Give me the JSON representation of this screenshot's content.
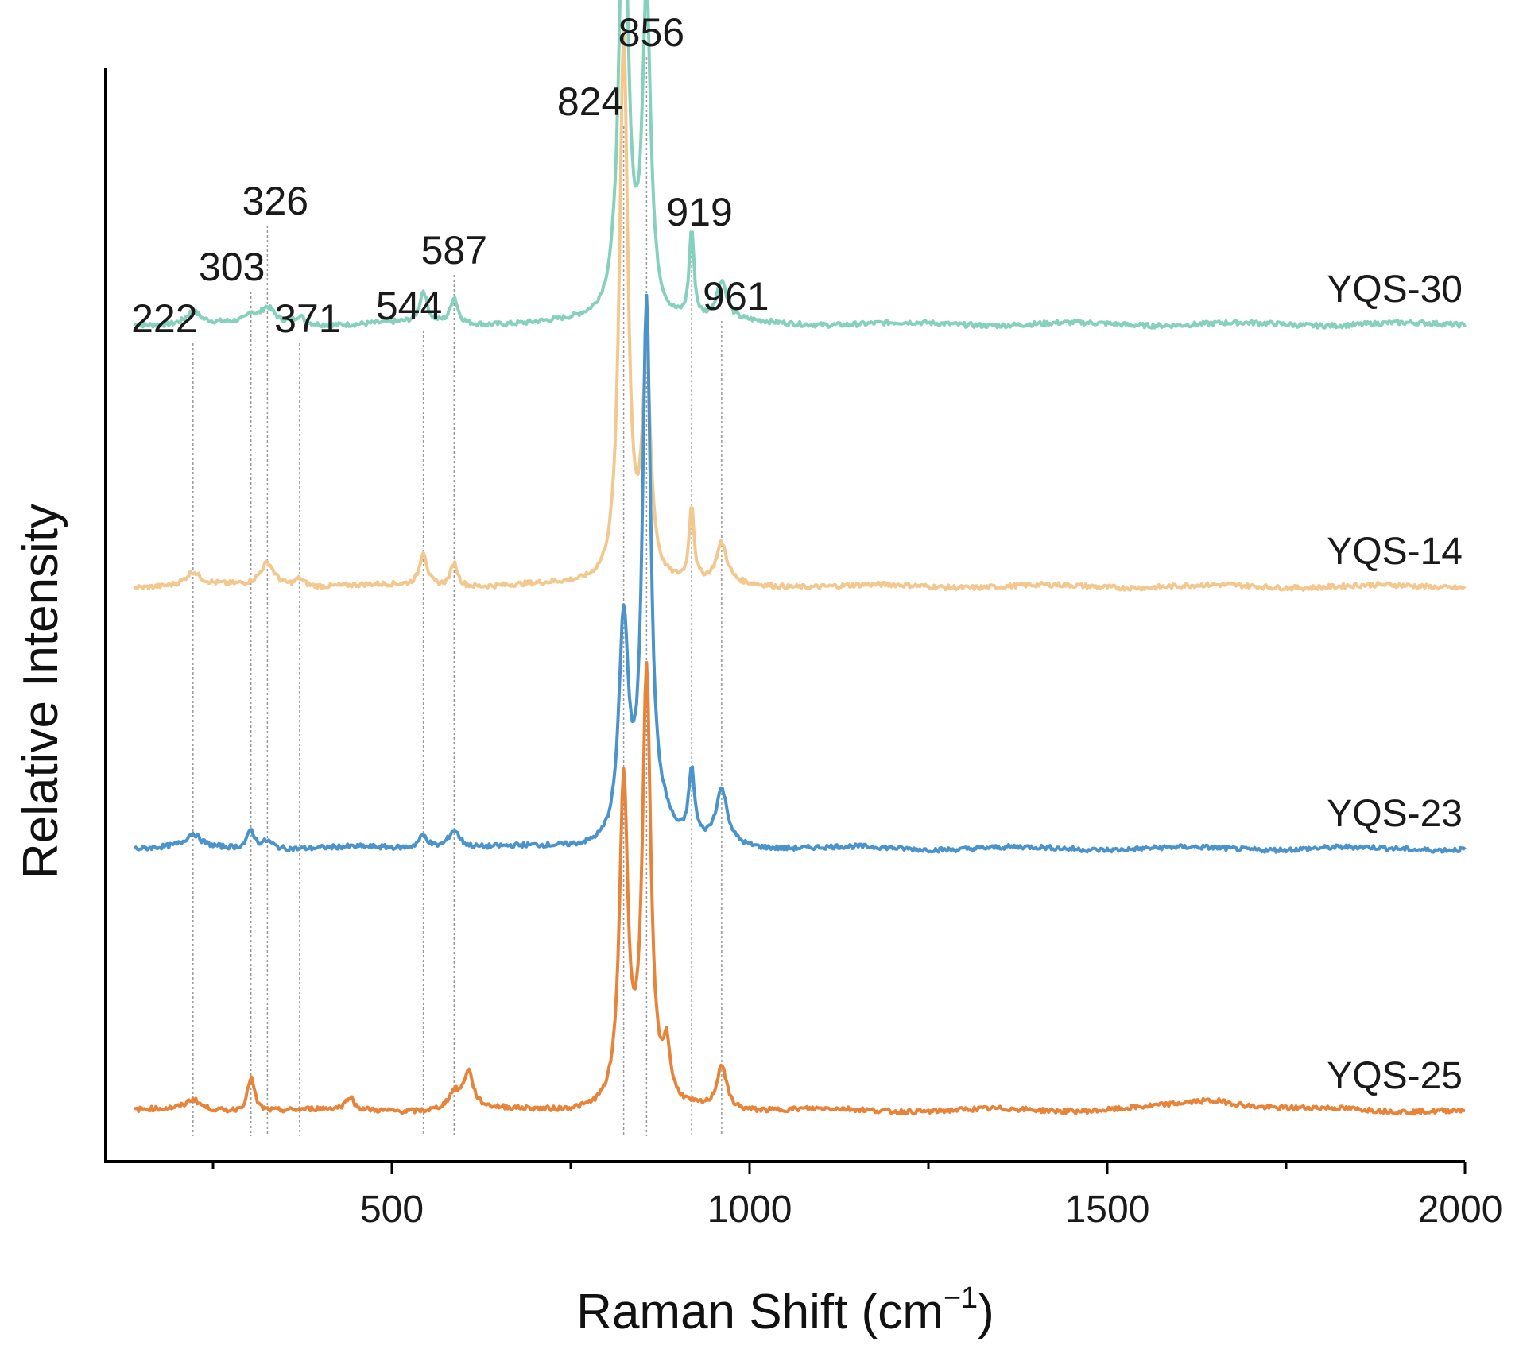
{
  "chart_data": {
    "type": "line",
    "title": "",
    "xlabel": "Raman Shift (cm",
    "xlabel_unit_exp": "−1",
    "xlabel_close": ")",
    "ylabel": "Relative Intensity",
    "xlim": [
      100,
      2000
    ],
    "x_ticks": [
      500,
      1000,
      1500,
      2000
    ],
    "x_tick_labels": [
      "500",
      "1000",
      "1500",
      "2000"
    ],
    "x_minor_ticks": [
      250,
      750,
      1250,
      1750
    ],
    "y_ticks_shown": false,
    "grid": false,
    "legend": "inline labels at right end of each trace",
    "peak_annotations": [
      {
        "x": 222,
        "label": "222"
      },
      {
        "x": 303,
        "label": "303"
      },
      {
        "x": 326,
        "label": "326"
      },
      {
        "x": 371,
        "label": "371"
      },
      {
        "x": 544,
        "label": "544"
      },
      {
        "x": 587,
        "label": "587"
      },
      {
        "x": 824,
        "label": "824"
      },
      {
        "x": 856,
        "label": "856"
      },
      {
        "x": 919,
        "label": "919"
      },
      {
        "x": 961,
        "label": "961"
      }
    ],
    "series": [
      {
        "name": "YQS-30",
        "color": "#86d1bd",
        "baseline": 3.0,
        "peaks": [
          {
            "x": 222,
            "h": 0.05,
            "w": 12
          },
          {
            "x": 303,
            "h": 0.03,
            "w": 6
          },
          {
            "x": 326,
            "h": 0.06,
            "w": 12
          },
          {
            "x": 371,
            "h": 0.03,
            "w": 8
          },
          {
            "x": 544,
            "h": 0.12,
            "w": 6
          },
          {
            "x": 587,
            "h": 0.1,
            "w": 6
          },
          {
            "x": 824,
            "h": 1.68,
            "w": 8
          },
          {
            "x": 856,
            "h": 1.22,
            "w": 7
          },
          {
            "x": 919,
            "h": 0.34,
            "w": 4
          },
          {
            "x": 961,
            "h": 0.15,
            "w": 9
          }
        ]
      },
      {
        "name": "YQS-14",
        "color": "#f2c88f",
        "baseline": 2.0,
        "peaks": [
          {
            "x": 222,
            "h": 0.05,
            "w": 12
          },
          {
            "x": 326,
            "h": 0.09,
            "w": 12
          },
          {
            "x": 371,
            "h": 0.03,
            "w": 8
          },
          {
            "x": 544,
            "h": 0.13,
            "w": 6
          },
          {
            "x": 587,
            "h": 0.09,
            "w": 6
          },
          {
            "x": 824,
            "h": 2.09,
            "w": 7
          },
          {
            "x": 856,
            "h": 0.81,
            "w": 7
          },
          {
            "x": 919,
            "h": 0.29,
            "w": 4
          },
          {
            "x": 961,
            "h": 0.15,
            "w": 9
          }
        ]
      },
      {
        "name": "YQS-23",
        "color": "#4b93cb",
        "baseline": 1.0,
        "peaks": [
          {
            "x": 222,
            "h": 0.05,
            "w": 12
          },
          {
            "x": 303,
            "h": 0.07,
            "w": 6
          },
          {
            "x": 326,
            "h": 0.03,
            "w": 10
          },
          {
            "x": 544,
            "h": 0.05,
            "w": 8
          },
          {
            "x": 587,
            "h": 0.07,
            "w": 10
          },
          {
            "x": 824,
            "h": 0.84,
            "w": 8
          },
          {
            "x": 856,
            "h": 2.05,
            "w": 7
          },
          {
            "x": 880,
            "h": 0.06,
            "w": 14
          },
          {
            "x": 919,
            "h": 0.26,
            "w": 5
          },
          {
            "x": 961,
            "h": 0.21,
            "w": 10
          }
        ]
      },
      {
        "name": "YQS-25",
        "color": "#e8833a",
        "baseline": 0.0,
        "peaks": [
          {
            "x": 222,
            "h": 0.04,
            "w": 12
          },
          {
            "x": 303,
            "h": 0.13,
            "w": 6
          },
          {
            "x": 441,
            "h": 0.05,
            "w": 6
          },
          {
            "x": 587,
            "h": 0.06,
            "w": 10
          },
          {
            "x": 607,
            "h": 0.14,
            "w": 8
          },
          {
            "x": 824,
            "h": 1.23,
            "w": 7
          },
          {
            "x": 856,
            "h": 1.63,
            "w": 7
          },
          {
            "x": 884,
            "h": 0.19,
            "w": 6
          },
          {
            "x": 961,
            "h": 0.17,
            "w": 8
          },
          {
            "x": 1650,
            "h": 0.04,
            "w": 60
          }
        ]
      }
    ]
  }
}
